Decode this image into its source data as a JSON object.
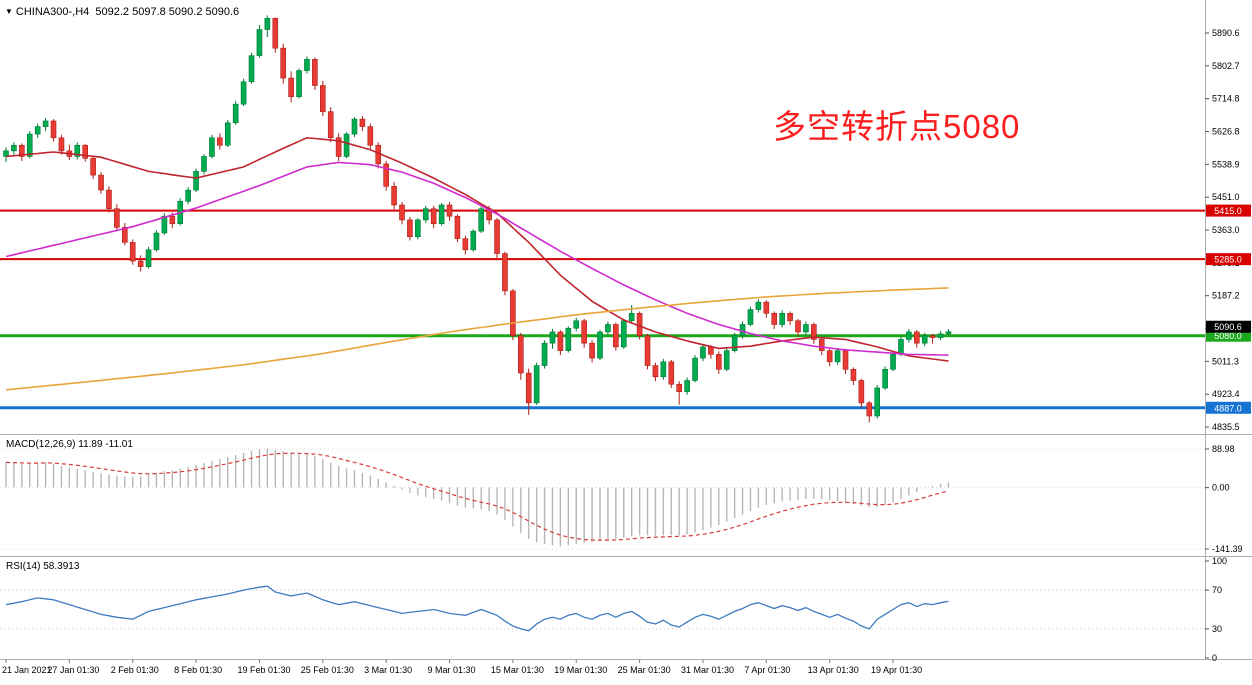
{
  "window": {
    "marker": "▼",
    "symbol_period": "CHINA300-,H4",
    "ohlc_line": "5092.2 5097.8 5090.2 5090.6"
  },
  "annotation": {
    "text": "多空转折点5080",
    "color": "#fb1e1e"
  },
  "indicators": {
    "macd": {
      "label": "MACD(12,26,9) 11.89 -11.01"
    },
    "rsi": {
      "label": "RSI(14) 58.3913"
    }
  },
  "chart_data": {
    "type": "candlestick",
    "symbol": "CHINA300",
    "timeframe": "H4",
    "title": "CHINA300-,H4",
    "colors": {
      "up": "#00AC4F",
      "up_border": "#007934",
      "down": "#E83B34",
      "down_border": "#AC1F1A",
      "ma_fast": "#C02430",
      "ma_mid": "#CF2BCF",
      "ma_slow": "#E8A63A",
      "macd_hist": "#B6B6B6",
      "macd_signal": "#D83A3A",
      "rsi_line": "#3E7BC0",
      "separator": "#ADADAD",
      "axis_text": "#000000"
    },
    "price_axis": {
      "labels": [
        "5890.6",
        "5802.7",
        "5714.8",
        "5626.8",
        "5538.9",
        "5451.0",
        "5363.0",
        "5275.1",
        "5187.2",
        "5099.2",
        "5011.3",
        "4923.4",
        "4835.5"
      ],
      "values": [
        5890.6,
        5802.7,
        5714.8,
        5626.8,
        5538.9,
        5451.0,
        5363.0,
        5275.1,
        5187.2,
        5099.2,
        5011.3,
        4923.4,
        4835.5
      ]
    },
    "time_axis": {
      "labels": [
        "21 Jan 2021",
        "27 Jan 01:30",
        "2 Feb 01:30",
        "8 Feb 01:30",
        "19 Feb 01:30",
        "25 Feb 01:30",
        "3 Mar 01:30",
        "9 Mar 01:30",
        "15 Mar 01:30",
        "19 Mar 01:30",
        "25 Mar 01:30",
        "31 Mar 01:30",
        "7 Apr 01:30",
        "13 Apr 01:30",
        "19 Apr 01:30"
      ]
    },
    "levels": [
      {
        "value": 5415.0,
        "label": "5415.0",
        "color": "#D90000",
        "width": 2
      },
      {
        "value": 5285.0,
        "label": "5285.0",
        "color": "#D90000",
        "width": 2
      },
      {
        "value": 5080.0,
        "label": "5080.0",
        "color": "#1CA81C",
        "width": 3
      },
      {
        "value": 4887.0,
        "label": "4887.0",
        "color": "#1673D2",
        "width": 3
      }
    ],
    "current_price": {
      "value": 5090.6,
      "label": "5090.6",
      "color": "#000000"
    },
    "candles": [
      [
        5560,
        5585,
        5545,
        5575
      ],
      [
        5575,
        5598,
        5565,
        5590
      ],
      [
        5590,
        5595,
        5548,
        5560
      ],
      [
        5560,
        5628,
        5555,
        5620
      ],
      [
        5620,
        5648,
        5610,
        5640
      ],
      [
        5640,
        5663,
        5628,
        5655
      ],
      [
        5655,
        5660,
        5600,
        5610
      ],
      [
        5610,
        5618,
        5565,
        5575
      ],
      [
        5575,
        5592,
        5550,
        5560
      ],
      [
        5560,
        5598,
        5552,
        5590
      ],
      [
        5590,
        5594,
        5546,
        5555
      ],
      [
        5555,
        5560,
        5500,
        5510
      ],
      [
        5510,
        5518,
        5460,
        5470
      ],
      [
        5470,
        5480,
        5410,
        5420
      ],
      [
        5420,
        5432,
        5360,
        5370
      ],
      [
        5370,
        5382,
        5322,
        5330
      ],
      [
        5330,
        5338,
        5270,
        5280
      ],
      [
        5280,
        5295,
        5252,
        5265
      ],
      [
        5265,
        5318,
        5260,
        5310
      ],
      [
        5310,
        5362,
        5305,
        5355
      ],
      [
        5355,
        5408,
        5350,
        5400
      ],
      [
        5400,
        5410,
        5368,
        5380
      ],
      [
        5380,
        5448,
        5375,
        5440
      ],
      [
        5440,
        5478,
        5432,
        5470
      ],
      [
        5470,
        5528,
        5465,
        5520
      ],
      [
        5520,
        5566,
        5512,
        5560
      ],
      [
        5560,
        5618,
        5555,
        5610
      ],
      [
        5610,
        5622,
        5578,
        5590
      ],
      [
        5590,
        5658,
        5585,
        5650
      ],
      [
        5650,
        5708,
        5645,
        5700
      ],
      [
        5700,
        5768,
        5695,
        5760
      ],
      [
        5760,
        5838,
        5755,
        5830
      ],
      [
        5830,
        5912,
        5825,
        5900
      ],
      [
        5900,
        5938,
        5880,
        5930
      ],
      [
        5930,
        5932,
        5838,
        5850
      ],
      [
        5850,
        5862,
        5755,
        5770
      ],
      [
        5770,
        5788,
        5705,
        5720
      ],
      [
        5720,
        5795,
        5715,
        5790
      ],
      [
        5790,
        5828,
        5782,
        5820
      ],
      [
        5820,
        5825,
        5738,
        5750
      ],
      [
        5750,
        5762,
        5668,
        5680
      ],
      [
        5680,
        5692,
        5598,
        5610
      ],
      [
        5610,
        5622,
        5548,
        5560
      ],
      [
        5560,
        5625,
        5555,
        5620
      ],
      [
        5620,
        5665,
        5612,
        5660
      ],
      [
        5660,
        5668,
        5628,
        5640
      ],
      [
        5640,
        5648,
        5580,
        5590
      ],
      [
        5590,
        5598,
        5528,
        5540
      ],
      [
        5540,
        5548,
        5468,
        5480
      ],
      [
        5480,
        5492,
        5418,
        5430
      ],
      [
        5430,
        5438,
        5378,
        5390
      ],
      [
        5390,
        5398,
        5335,
        5345
      ],
      [
        5345,
        5395,
        5338,
        5390
      ],
      [
        5390,
        5428,
        5382,
        5420
      ],
      [
        5420,
        5428,
        5368,
        5380
      ],
      [
        5380,
        5435,
        5375,
        5430
      ],
      [
        5430,
        5438,
        5388,
        5400
      ],
      [
        5400,
        5405,
        5330,
        5340
      ],
      [
        5340,
        5348,
        5298,
        5310
      ],
      [
        5310,
        5365,
        5305,
        5360
      ],
      [
        5360,
        5425,
        5355,
        5420
      ],
      [
        5420,
        5428,
        5378,
        5390
      ],
      [
        5390,
        5395,
        5288,
        5300
      ],
      [
        5300,
        5305,
        5188,
        5200
      ],
      [
        5200,
        5205,
        5068,
        5080
      ],
      [
        5080,
        5088,
        4962,
        4980
      ],
      [
        4980,
        4992,
        4868,
        4900
      ],
      [
        4900,
        5008,
        4895,
        5000
      ],
      [
        5000,
        5068,
        4992,
        5060
      ],
      [
        5060,
        5098,
        5045,
        5090
      ],
      [
        5090,
        5095,
        5028,
        5040
      ],
      [
        5040,
        5105,
        5035,
        5100
      ],
      [
        5100,
        5128,
        5092,
        5120
      ],
      [
        5120,
        5125,
        5048,
        5060
      ],
      [
        5060,
        5068,
        5008,
        5020
      ],
      [
        5020,
        5095,
        5015,
        5090
      ],
      [
        5090,
        5118,
        5082,
        5110
      ],
      [
        5110,
        5115,
        5040,
        5050
      ],
      [
        5050,
        5125,
        5045,
        5120
      ],
      [
        5120,
        5162,
        5112,
        5140
      ],
      [
        5140,
        5145,
        5070,
        5080
      ],
      [
        5080,
        5085,
        4990,
        5000
      ],
      [
        5000,
        5008,
        4958,
        4970
      ],
      [
        4970,
        5018,
        4962,
        5010
      ],
      [
        5010,
        5015,
        4940,
        4950
      ],
      [
        4950,
        4958,
        4895,
        4930
      ],
      [
        4930,
        4968,
        4922,
        4960
      ],
      [
        4960,
        5028,
        4955,
        5020
      ],
      [
        5020,
        5058,
        5012,
        5050
      ],
      [
        5050,
        5055,
        5018,
        5030
      ],
      [
        5030,
        5038,
        4978,
        4990
      ],
      [
        4990,
        5048,
        4985,
        5040
      ],
      [
        5040,
        5088,
        5035,
        5080
      ],
      [
        5080,
        5118,
        5072,
        5110
      ],
      [
        5110,
        5158,
        5105,
        5150
      ],
      [
        5150,
        5178,
        5142,
        5170
      ],
      [
        5170,
        5175,
        5128,
        5140
      ],
      [
        5140,
        5145,
        5098,
        5110
      ],
      [
        5110,
        5148,
        5102,
        5140
      ],
      [
        5140,
        5145,
        5108,
        5120
      ],
      [
        5120,
        5125,
        5078,
        5090
      ],
      [
        5090,
        5118,
        5082,
        5110
      ],
      [
        5110,
        5115,
        5058,
        5070
      ],
      [
        5070,
        5075,
        5028,
        5040
      ],
      [
        5040,
        5045,
        4998,
        5010
      ],
      [
        5010,
        5048,
        5002,
        5040
      ],
      [
        5040,
        5045,
        4978,
        4990
      ],
      [
        4990,
        4995,
        4948,
        4960
      ],
      [
        4960,
        4965,
        4888,
        4900
      ],
      [
        4900,
        4905,
        4848,
        4865
      ],
      [
        4865,
        4948,
        4858,
        4940
      ],
      [
        4940,
        4998,
        4935,
        4990
      ],
      [
        4990,
        5038,
        4985,
        5030
      ],
      [
        5030,
        5078,
        5025,
        5070
      ],
      [
        5070,
        5098,
        5062,
        5090
      ],
      [
        5090,
        5095,
        5048,
        5060
      ],
      [
        5060,
        5088,
        5052,
        5080
      ],
      [
        5080,
        5085,
        5058,
        5075
      ],
      [
        5075,
        5092,
        5068,
        5085
      ],
      [
        5085,
        5097.8,
        5080,
        5090.6
      ]
    ],
    "moving_averages": [
      {
        "name": "ma-fast-red",
        "points": [
          [
            0,
            5560
          ],
          [
            6,
            5572
          ],
          [
            12,
            5558
          ],
          [
            18,
            5520
          ],
          [
            24,
            5502
          ],
          [
            30,
            5532
          ],
          [
            34,
            5572
          ],
          [
            38,
            5610
          ],
          [
            42,
            5602
          ],
          [
            46,
            5578
          ],
          [
            50,
            5542
          ],
          [
            54,
            5502
          ],
          [
            58,
            5458
          ],
          [
            62,
            5408
          ],
          [
            66,
            5330
          ],
          [
            70,
            5242
          ],
          [
            74,
            5172
          ],
          [
            78,
            5122
          ],
          [
            82,
            5090
          ],
          [
            86,
            5066
          ],
          [
            90,
            5046
          ],
          [
            94,
            5052
          ],
          [
            98,
            5066
          ],
          [
            102,
            5076
          ],
          [
            106,
            5070
          ],
          [
            110,
            5050
          ],
          [
            114,
            5026
          ],
          [
            119,
            5012
          ]
        ]
      },
      {
        "name": "ma-mid-magenta",
        "points": [
          [
            0,
            5292
          ],
          [
            8,
            5332
          ],
          [
            16,
            5372
          ],
          [
            24,
            5422
          ],
          [
            32,
            5482
          ],
          [
            38,
            5532
          ],
          [
            42,
            5544
          ],
          [
            46,
            5538
          ],
          [
            50,
            5518
          ],
          [
            54,
            5488
          ],
          [
            58,
            5450
          ],
          [
            62,
            5406
          ],
          [
            66,
            5356
          ],
          [
            70,
            5306
          ],
          [
            74,
            5260
          ],
          [
            78,
            5216
          ],
          [
            82,
            5176
          ],
          [
            86,
            5140
          ],
          [
            90,
            5110
          ],
          [
            94,
            5086
          ],
          [
            98,
            5066
          ],
          [
            102,
            5052
          ],
          [
            106,
            5042
          ],
          [
            110,
            5036
          ],
          [
            114,
            5030
          ],
          [
            119,
            5028
          ]
        ]
      },
      {
        "name": "ma-slow-orange",
        "points": [
          [
            0,
            4935
          ],
          [
            10,
            4956
          ],
          [
            20,
            4978
          ],
          [
            30,
            5002
          ],
          [
            40,
            5032
          ],
          [
            48,
            5062
          ],
          [
            56,
            5090
          ],
          [
            64,
            5114
          ],
          [
            72,
            5136
          ],
          [
            80,
            5154
          ],
          [
            88,
            5170
          ],
          [
            96,
            5184
          ],
          [
            104,
            5194
          ],
          [
            112,
            5202
          ],
          [
            119,
            5208
          ]
        ]
      }
    ],
    "macd": {
      "params": "12,26,9",
      "main_value": 11.89,
      "signal_value": -11.01,
      "axis_labels": [
        "88.98",
        "0.00",
        "-141.39"
      ],
      "axis_values": [
        88.98,
        0,
        -141.39
      ],
      "signal_period": 9,
      "histogram": [
        58,
        56,
        54,
        55,
        57,
        58,
        55,
        50,
        46,
        44,
        40,
        36,
        33,
        30,
        28,
        26,
        25,
        26,
        30,
        34,
        38,
        40,
        44,
        48,
        52,
        57,
        62,
        66,
        70,
        75,
        80,
        85,
        88,
        90,
        88,
        84,
        80,
        78,
        76,
        72,
        66,
        58,
        50,
        44,
        40,
        34,
        28,
        20,
        12,
        4,
        -4,
        -12,
        -18,
        -22,
        -26,
        -30,
        -36,
        -42,
        -46,
        -48,
        -50,
        -54,
        -62,
        -75,
        -90,
        -105,
        -118,
        -126,
        -130,
        -133,
        -135,
        -133,
        -130,
        -128,
        -126,
        -123,
        -120,
        -118,
        -116,
        -112,
        -110,
        -110,
        -111,
        -110,
        -110,
        -110,
        -108,
        -104,
        -98,
        -92,
        -86,
        -78,
        -70,
        -62,
        -54,
        -46,
        -40,
        -36,
        -32,
        -30,
        -28,
        -26,
        -26,
        -27,
        -29,
        -31,
        -34,
        -38,
        -42,
        -45,
        -44,
        -40,
        -34,
        -26,
        -18,
        -10,
        -2,
        4,
        9,
        11.89
      ]
    },
    "rsi": {
      "period": 14,
      "value": 58.3913,
      "axis_labels": [
        "100",
        "70",
        "30",
        "0"
      ],
      "axis_values": [
        100,
        70,
        30,
        0
      ],
      "level_lines": [
        70,
        30
      ],
      "values": [
        55,
        56.5,
        58,
        60,
        62,
        61,
        60,
        57.5,
        55,
        52.5,
        50,
        47.5,
        45,
        43.5,
        42,
        41,
        40,
        44,
        48,
        50,
        52,
        54,
        56,
        58,
        60,
        61.5,
        63,
        64.5,
        66,
        68,
        70,
        71.5,
        73,
        74,
        68,
        66,
        64,
        65.5,
        67,
        63.5,
        60,
        57.5,
        55,
        56.5,
        58,
        56,
        54,
        52,
        50,
        48,
        46,
        47,
        48,
        49,
        50,
        48,
        46,
        45,
        44,
        47,
        50,
        47,
        44,
        38,
        33,
        30,
        28,
        35,
        40,
        42,
        40,
        44,
        46,
        42,
        40,
        44,
        46,
        42,
        46,
        48,
        43,
        37,
        35,
        39,
        34,
        32,
        37,
        42,
        45,
        43,
        40,
        44,
        48,
        51,
        55,
        57,
        54,
        51,
        54,
        52,
        49,
        52,
        48,
        45,
        42,
        45,
        41,
        38,
        33,
        30,
        40,
        45,
        50,
        55,
        57,
        53,
        56,
        55,
        57,
        58.39
      ]
    }
  }
}
